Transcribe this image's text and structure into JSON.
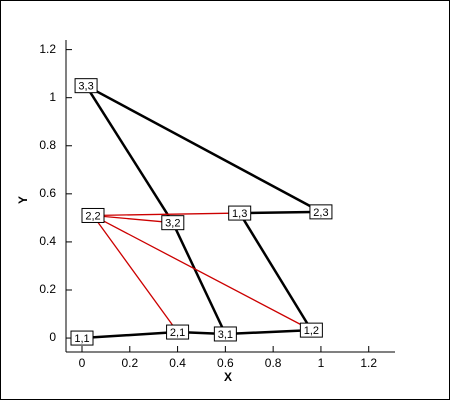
{
  "chart_data": {
    "type": "mesh",
    "x_label": "X",
    "y_label": "Y",
    "xlim": [
      -0.067,
      1.31
    ],
    "ylim": [
      -0.058,
      1.24
    ],
    "xticks": [
      0,
      0.2,
      0.4,
      0.6,
      0.8,
      1,
      1.2
    ],
    "yticks": [
      0,
      0.2,
      0.4,
      0.6,
      0.8,
      1,
      1.2
    ],
    "nodes": [
      {
        "label": "1,1",
        "x": 0.0,
        "y": 0.0
      },
      {
        "label": "2,1",
        "x": 0.4,
        "y": 0.025
      },
      {
        "label": "3,1",
        "x": 0.6,
        "y": 0.017
      },
      {
        "label": "1,2",
        "x": 0.96,
        "y": 0.033
      },
      {
        "label": "2,2",
        "x": 0.046,
        "y": 0.51
      },
      {
        "label": "3,2",
        "x": 0.38,
        "y": 0.48
      },
      {
        "label": "1,3",
        "x": 0.66,
        "y": 0.52
      },
      {
        "label": "2,3",
        "x": 1.0,
        "y": 0.525
      },
      {
        "label": "3,3",
        "x": 0.017,
        "y": 1.05
      }
    ],
    "edges": [
      {
        "from": 0,
        "to": 1,
        "color": "#000000"
      },
      {
        "from": 1,
        "to": 2,
        "color": "#000000"
      },
      {
        "from": 2,
        "to": 3,
        "color": "#000000"
      },
      {
        "from": 8,
        "to": 5,
        "color": "#000000"
      },
      {
        "from": 5,
        "to": 2,
        "color": "#000000"
      },
      {
        "from": 8,
        "to": 7,
        "color": "#000000"
      },
      {
        "from": 6,
        "to": 7,
        "color": "#000000"
      },
      {
        "from": 6,
        "to": 3,
        "color": "#000000"
      },
      {
        "from": 4,
        "to": 1,
        "color": "#cc0000"
      },
      {
        "from": 4,
        "to": 3,
        "color": "#cc0000"
      },
      {
        "from": 4,
        "to": 5,
        "color": "#cc0000"
      },
      {
        "from": 4,
        "to": 6,
        "color": "#cc0000"
      }
    ]
  }
}
